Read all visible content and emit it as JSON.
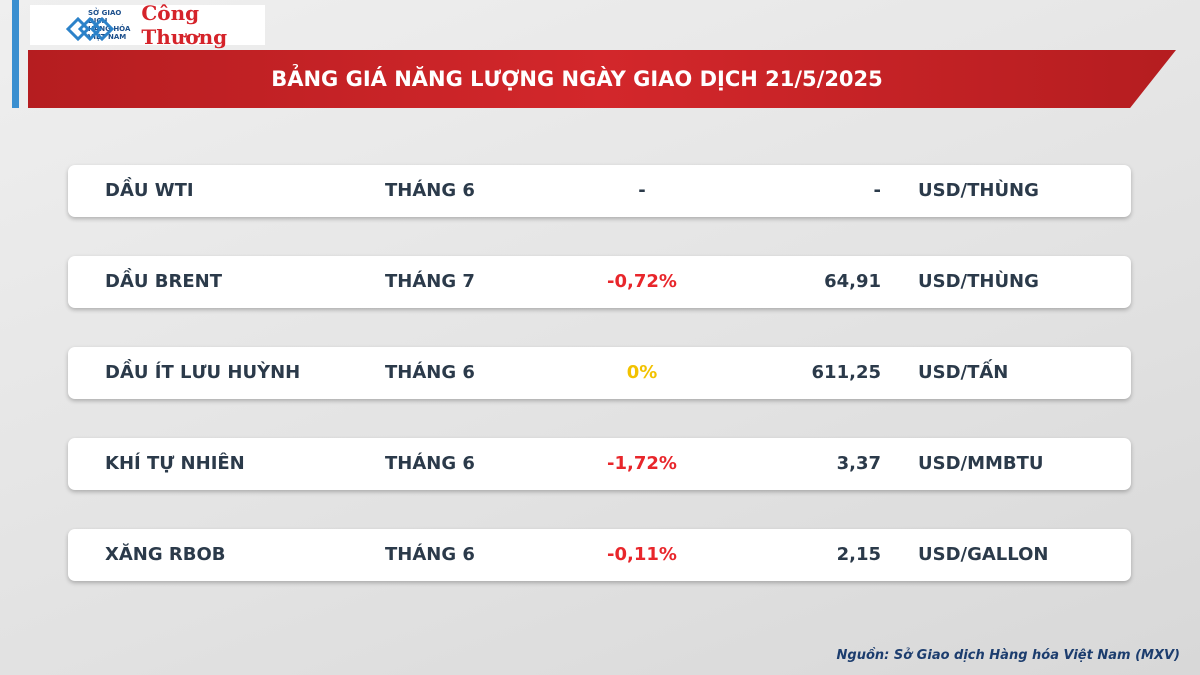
{
  "header": {
    "logo_lines": [
      "SỞ GIAO DỊCH",
      "HÀNG HÓA",
      "VIỆT NAM"
    ],
    "brand": "Công Thương",
    "title": "BẢNG GIÁ NĂNG LƯỢNG NGÀY GIAO DỊCH 21/5/2025"
  },
  "table": {
    "rows": [
      [
        "DẦU WTI",
        "THÁNG 6",
        "-",
        "-",
        "USD/THÙNG"
      ],
      [
        "DẦU BRENT",
        "THÁNG 7",
        "-0,72%",
        "64,91",
        "USD/THÙNG"
      ],
      [
        "DẦU ÍT LƯU HUỲNH",
        "THÁNG 6",
        "0%",
        "611,25",
        "USD/TẤN"
      ],
      [
        "KHÍ TỰ NHIÊN",
        "THÁNG 6",
        "-1,72%",
        "3,37",
        "USD/MMBTU"
      ],
      [
        "XĂNG RBOB",
        "THÁNG 6",
        "-0,11%",
        "2,15",
        "USD/GALLON"
      ]
    ],
    "change_colors": [
      "#2b3a4a",
      "#e8262b",
      "#f2c200",
      "#e8262b",
      "#e8262b"
    ]
  },
  "footer": {
    "source": "Nguồn: Sở Giao dịch Hàng hóa Việt Nam (MXV)"
  }
}
